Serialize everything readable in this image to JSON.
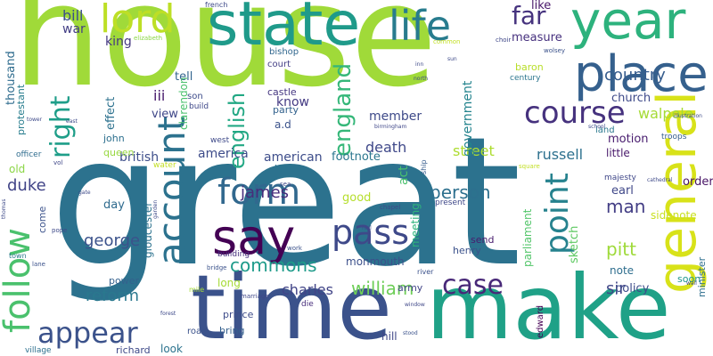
{
  "words": [
    {
      "text": "house",
      "color": "#a0da39"
    },
    {
      "text": "great",
      "color": "#2c728e"
    },
    {
      "text": "make",
      "color": "#1fa187"
    },
    {
      "text": "time",
      "color": "#3b528b"
    },
    {
      "text": "state",
      "color": "#1f9a8a"
    },
    {
      "text": "year",
      "color": "#2db27d"
    },
    {
      "text": "life",
      "color": "#287c8e"
    },
    {
      "text": "lord",
      "color": "#bddf26"
    },
    {
      "text": "place",
      "color": "#35608d"
    },
    {
      "text": "say",
      "color": "#440154"
    },
    {
      "text": "general",
      "color": "#d8e219"
    },
    {
      "text": "course",
      "color": "#46327e"
    },
    {
      "text": "account",
      "color": "#2c728e"
    },
    {
      "text": "follow",
      "color": "#4ac16d"
    },
    {
      "text": "form",
      "color": "#31688e"
    },
    {
      "text": "pass",
      "color": "#3e4989"
    },
    {
      "text": "point",
      "color": "#26828e"
    },
    {
      "text": "appear",
      "color": "#3b528b"
    },
    {
      "text": "case",
      "color": "#482878"
    },
    {
      "text": "right",
      "color": "#1f9e89"
    },
    {
      "text": "far",
      "color": "#46337e"
    },
    {
      "text": "country",
      "color": "#365c8d"
    },
    {
      "text": "england",
      "color": "#35b779"
    },
    {
      "text": "english",
      "color": "#22a884"
    },
    {
      "text": "commons",
      "color": "#1e9b8a"
    },
    {
      "text": "william",
      "color": "#6ece58"
    },
    {
      "text": "charles",
      "color": "#414487"
    },
    {
      "text": "reform",
      "color": "#2a788e"
    },
    {
      "text": "person",
      "color": "#2d708e"
    },
    {
      "text": "james",
      "color": "#472d7b"
    },
    {
      "text": "george",
      "color": "#3b528b"
    },
    {
      "text": "duke",
      "color": "#414487"
    },
    {
      "text": "man",
      "color": "#433e85"
    },
    {
      "text": "pitt",
      "color": "#9fda3a"
    },
    {
      "text": "sir",
      "color": "#404688"
    },
    {
      "text": "russell",
      "color": "#2d708e"
    },
    {
      "text": "walpole",
      "color": "#a5db36"
    },
    {
      "text": "street",
      "color": "#addc30"
    },
    {
      "text": "government",
      "color": "#25848e"
    },
    {
      "text": "death",
      "color": "#3f4889"
    },
    {
      "text": "member",
      "color": "#3e4a89"
    },
    {
      "text": "america",
      "color": "#3e4c8a"
    },
    {
      "text": "american",
      "color": "#3d4d8a"
    },
    {
      "text": "british",
      "color": "#3d4e8a"
    },
    {
      "text": "bill",
      "color": "#3c4f8a"
    },
    {
      "text": "war",
      "color": "#433e85"
    },
    {
      "text": "king",
      "color": "#453882"
    },
    {
      "text": "like",
      "color": "#481769"
    },
    {
      "text": "measure",
      "color": "#46307e"
    },
    {
      "text": "thousand",
      "color": "#2f6c8e"
    },
    {
      "text": "protestant",
      "color": "#287d8e"
    },
    {
      "text": "effect",
      "color": "#2c718e"
    },
    {
      "text": "iii",
      "color": "#481b6d"
    },
    {
      "text": "view",
      "color": "#3f4788"
    },
    {
      "text": "tell",
      "color": "#32648e"
    },
    {
      "text": "bishop",
      "color": "#31678e"
    },
    {
      "text": "court",
      "color": "#433e85"
    },
    {
      "text": "know",
      "color": "#443a83"
    },
    {
      "text": "castle",
      "color": "#453781"
    },
    {
      "text": "party",
      "color": "#33628d"
    },
    {
      "text": "a.d",
      "color": "#3b528b"
    },
    {
      "text": "act",
      "color": "#4ac16d"
    },
    {
      "text": "footnote",
      "color": "#2a768e"
    },
    {
      "text": "london",
      "color": "#2c738e"
    },
    {
      "text": "church",
      "color": "#3e4a89"
    },
    {
      "text": "motion",
      "color": "#481c6e"
    },
    {
      "text": "little",
      "color": "#48186a"
    },
    {
      "text": "earl",
      "color": "#3f4788"
    },
    {
      "text": "order",
      "color": "#481467"
    },
    {
      "text": "sidenote",
      "color": "#c8e020"
    },
    {
      "text": "note",
      "color": "#2e6e8e"
    },
    {
      "text": "policy",
      "color": "#3e4c8a"
    },
    {
      "text": "soon",
      "color": "#1f968b"
    },
    {
      "text": "minister",
      "color": "#2e6f8e"
    },
    {
      "text": "parliament",
      "color": "#52c569"
    },
    {
      "text": "sketch",
      "color": "#5ec962"
    },
    {
      "text": "meeting",
      "color": "#2fb47c"
    },
    {
      "text": "monmouth",
      "color": "#3c508b"
    },
    {
      "text": "send",
      "color": "#481c6e"
    },
    {
      "text": "henry",
      "color": "#3b518b"
    },
    {
      "text": "army",
      "color": "#414487"
    },
    {
      "text": "good",
      "color": "#b5de2b"
    },
    {
      "text": "long",
      "color": "#a5db36"
    },
    {
      "text": "power",
      "color": "#34618d"
    },
    {
      "text": "prince",
      "color": "#3e4c8a"
    },
    {
      "text": "bring",
      "color": "#34608d"
    },
    {
      "text": "look",
      "color": "#2c738e"
    },
    {
      "text": "john",
      "color": "#2d6f8e"
    },
    {
      "text": "queen",
      "color": "#97d83f"
    },
    {
      "text": "old",
      "color": "#8bd646"
    },
    {
      "text": "day",
      "color": "#2f6b8e"
    },
    {
      "text": "come",
      "color": "#3b528b"
    },
    {
      "text": "gloucester",
      "color": "#2c728e"
    },
    {
      "text": "clarendon",
      "color": "#4ac16d"
    },
    {
      "text": "son",
      "color": "#3e4c8a"
    },
    {
      "text": "build",
      "color": "#3f4889"
    },
    {
      "text": "west",
      "color": "#3e4a89"
    },
    {
      "text": "edward",
      "color": "#440154"
    },
    {
      "text": "richard",
      "color": "#3e4a89"
    },
    {
      "text": "road",
      "color": "#3b528b"
    },
    {
      "text": "hill",
      "color": "#3f4788"
    },
    {
      "text": "village",
      "color": "#2d708e"
    },
    {
      "text": "baron",
      "color": "#b8de29"
    },
    {
      "text": "century",
      "color": "#2b758e"
    },
    {
      "text": "land",
      "color": "#2a788e"
    },
    {
      "text": "troops",
      "color": "#355f8d"
    },
    {
      "text": "building",
      "color": "#46307e"
    },
    {
      "text": "die",
      "color": "#472d7b"
    },
    {
      "text": "majesty",
      "color": "#3f4788"
    },
    {
      "text": "officer",
      "color": "#2f6c8e"
    },
    {
      "text": "water",
      "color": "#c2df23"
    },
    {
      "text": "present",
      "color": "#3f4889"
    },
    {
      "text": "river",
      "color": "#3b528b"
    },
    {
      "text": "french",
      "color": "#3e4a89"
    },
    {
      "text": "elizabeth",
      "color": "#8bd646"
    },
    {
      "text": "common",
      "color": "#c2df23"
    },
    {
      "text": "wolsey",
      "color": "#3b528b"
    },
    {
      "text": "choir",
      "color": "#3f4788"
    },
    {
      "text": "mile",
      "color": "#a5db36"
    },
    {
      "text": "marriage",
      "color": "#3f4788"
    },
    {
      "text": "ship",
      "color": "#365c8d"
    },
    {
      "text": "town",
      "color": "#2a788e"
    },
    {
      "text": "pope",
      "color": "#3e4a89"
    },
    {
      "text": "lane",
      "color": "#3b528b"
    },
    {
      "text": "vol",
      "color": "#3f4788"
    },
    {
      "text": "sea",
      "color": "#3f4788"
    },
    {
      "text": "chapel",
      "color": "#3e4a89"
    },
    {
      "text": "work",
      "color": "#3b528b"
    },
    {
      "text": "bridge",
      "color": "#3b528b"
    },
    {
      "text": "school",
      "color": "#3e4a89"
    },
    {
      "text": "cathedral",
      "color": "#3e4a89"
    },
    {
      "text": "square",
      "color": "#c2df23"
    },
    {
      "text": "forest",
      "color": "#3e4a89"
    },
    {
      "text": "window",
      "color": "#3f4788"
    },
    {
      "text": "stood",
      "color": "#3b528b"
    },
    {
      "text": "birmingham",
      "color": "#3f4788"
    },
    {
      "text": "illustration",
      "color": "#3e4a89"
    },
    {
      "text": "north",
      "color": "#3e4a89"
    },
    {
      "text": "inn",
      "color": "#3e4a89"
    },
    {
      "text": "wall",
      "color": "#3f4788"
    },
    {
      "text": "tower",
      "color": "#3e4a89"
    },
    {
      "text": "garden",
      "color": "#3e4a89"
    },
    {
      "text": "thomas",
      "color": "#3e4a89"
    },
    {
      "text": "gate",
      "color": "#3e4a89"
    },
    {
      "text": "east",
      "color": "#3e4a89"
    },
    {
      "text": "sun",
      "color": "#3e4a89"
    },
    {
      "text": "hall",
      "color": "#3e4a89"
    }
  ]
}
